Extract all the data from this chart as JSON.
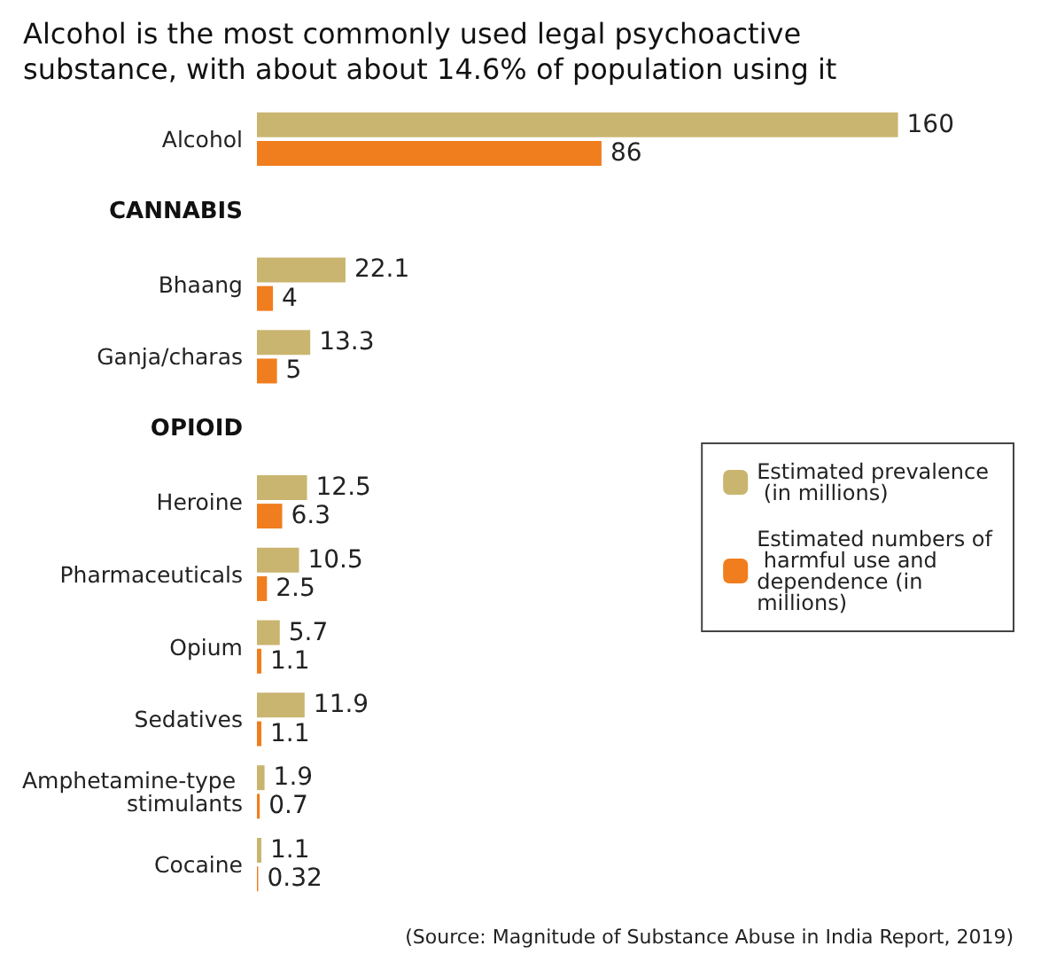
{
  "chart_data": {
    "type": "bar",
    "orientation": "horizontal",
    "title": "Alcohol is the most commonly used legal psychoactive substance, with about about 14.6% of population using it",
    "categories": [
      "Alcohol",
      "CANNABIS",
      "Bhaang",
      "Ganja/charas",
      "OPIOID",
      "Heroine",
      "Pharmaceuticals",
      "Opium",
      "Sedatives",
      "Amphetamine-type stimulants",
      "Cocaine"
    ],
    "series": [
      {
        "name": "Estimated prevalence (in millions)",
        "color": "#c9b56f",
        "values": [
          160,
          null,
          22.1,
          13.3,
          null,
          12.5,
          10.5,
          5.7,
          11.9,
          1.9,
          1.1
        ]
      },
      {
        "name": "Estimated numbers of harmful use and dependence (in millions)",
        "color": "#f07d1e",
        "values": [
          86,
          null,
          4,
          5,
          null,
          6.3,
          2.5,
          1.1,
          1.1,
          0.7,
          0.32
        ]
      }
    ],
    "data_labels": true,
    "legend": "right",
    "tick_labels": "y",
    "annotations": [
      "(Source: Magnitude of Substance Abuse in India Report, 2019)"
    ]
  }
}
